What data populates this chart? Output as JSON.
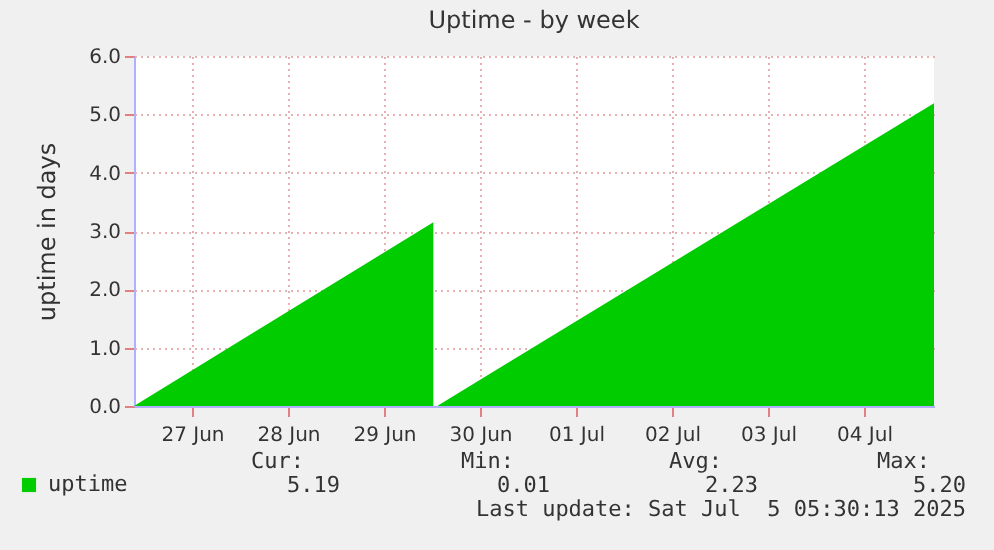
{
  "chart_data": {
    "type": "area",
    "title": "Uptime - by week",
    "ylabel": "uptime in days",
    "x": [
      "2025-06-26T21:30",
      "2025-06-30T00:20",
      "2025-06-30T00:50",
      "2025-06-30T01:30",
      "2025-07-05T05:30"
    ],
    "series": [
      {
        "name": "uptime",
        "color": "#00cc00",
        "values": [
          0,
          3.15,
          null,
          0.01,
          5.19
        ]
      }
    ],
    "xlim": [
      "2025-06-26T21:30",
      "2025-07-05T05:30"
    ],
    "xticks": [
      {
        "value": "2025-06-27T12:00",
        "label": "27 Jun"
      },
      {
        "value": "2025-06-28T12:00",
        "label": "28 Jun"
      },
      {
        "value": "2025-06-29T12:00",
        "label": "29 Jun"
      },
      {
        "value": "2025-06-30T12:00",
        "label": "30 Jun"
      },
      {
        "value": "2025-07-01T12:00",
        "label": "01 Jul"
      },
      {
        "value": "2025-07-02T12:00",
        "label": "02 Jul"
      },
      {
        "value": "2025-07-03T12:00",
        "label": "03 Jul"
      },
      {
        "value": "2025-07-04T12:00",
        "label": "04 Jul"
      }
    ],
    "ylim": [
      0,
      6
    ],
    "yticks": [
      {
        "value": 0,
        "label": "0.0"
      },
      {
        "value": 1,
        "label": "1.0"
      },
      {
        "value": 2,
        "label": "2.0"
      },
      {
        "value": 3,
        "label": "3.0"
      },
      {
        "value": 4,
        "label": "4.0"
      },
      {
        "value": 5,
        "label": "5.0"
      },
      {
        "value": 6,
        "label": "6.0"
      }
    ],
    "grid": true,
    "legend": "bottom left",
    "annotations": [
      "Cur:",
      "Min:",
      "Avg:",
      "Max:",
      "5.19",
      "0.01",
      "2.23",
      "5.20",
      "Last update: Sat Jul  5 05:30:13 2025"
    ]
  }
}
